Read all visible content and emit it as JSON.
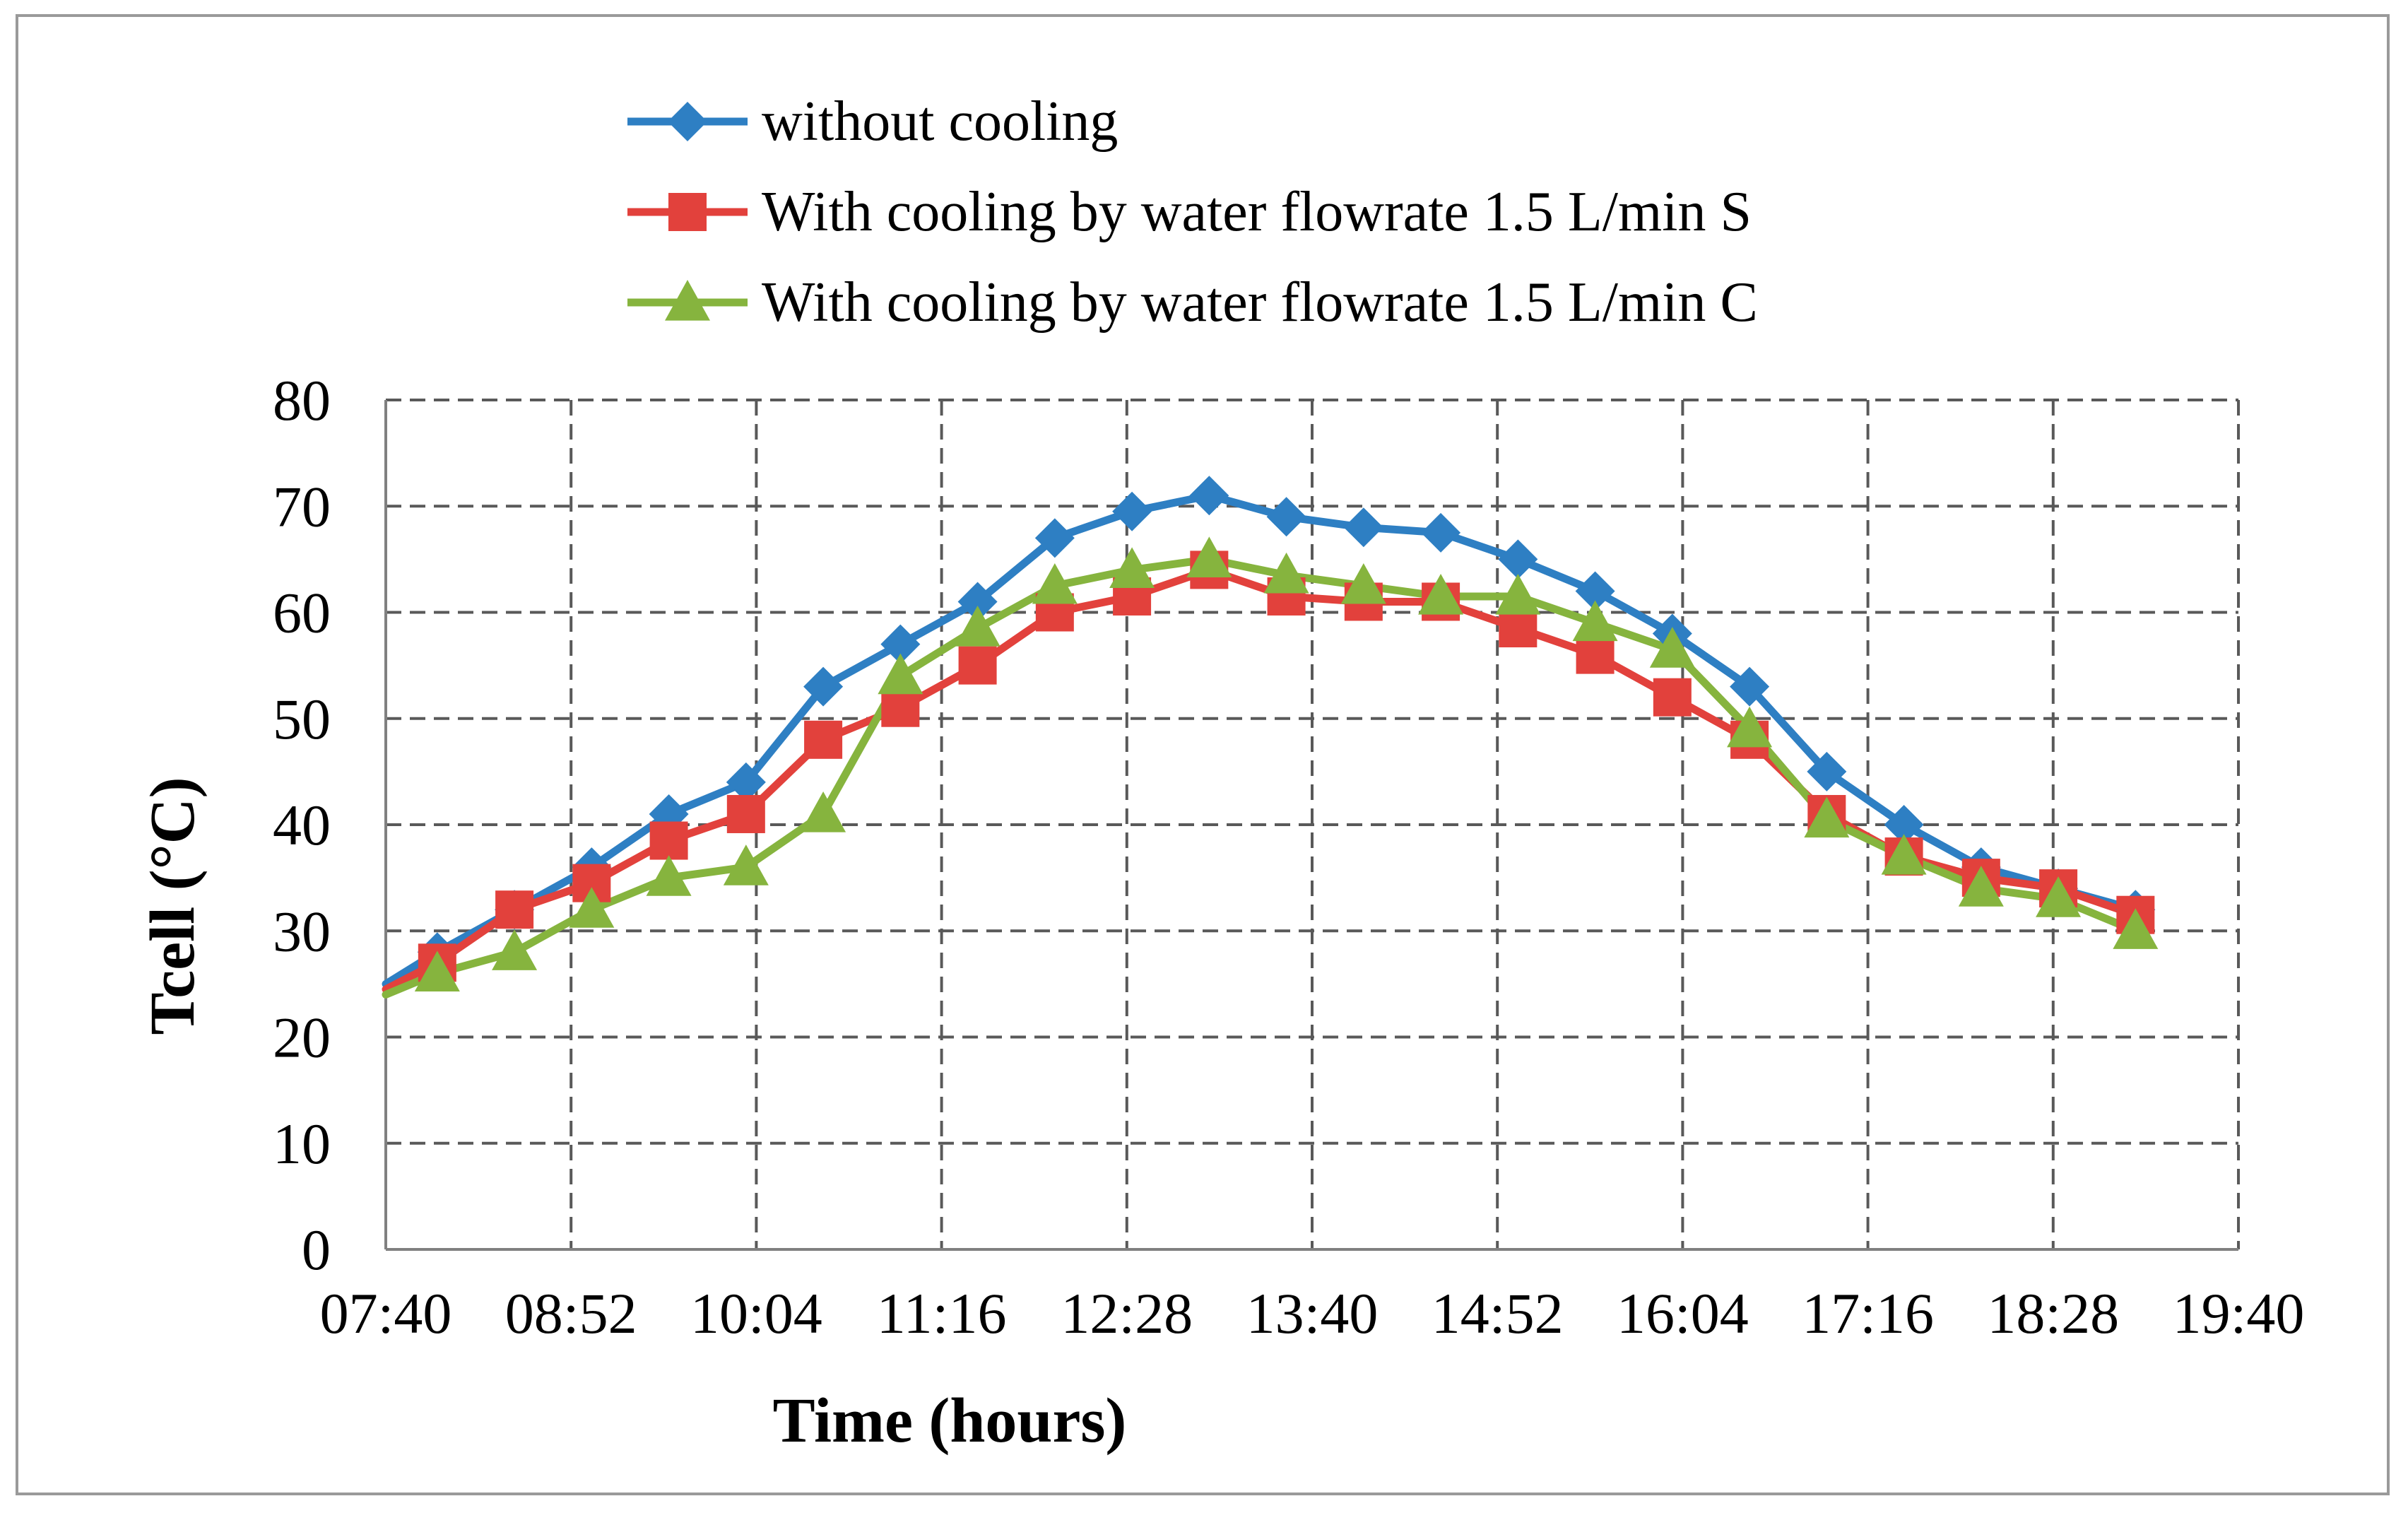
{
  "chart_data": {
    "type": "line",
    "title": "",
    "xlabel": "Time (hours)",
    "ylabel": "Tcell (°C)",
    "ylim": [
      0,
      80
    ],
    "xlim_minutes": [
      460,
      1180
    ],
    "x_ticks_minutes": [
      460,
      532,
      604,
      676,
      748,
      820,
      892,
      964,
      1036,
      1108,
      1180
    ],
    "x_tick_labels": [
      "07:40",
      "08:52",
      "10:04",
      "11:16",
      "12:28",
      "13:40",
      "14:52",
      "16:04",
      "17:16",
      "18:28",
      "19:40"
    ],
    "y_ticks": [
      0,
      10,
      20,
      30,
      40,
      50,
      60,
      70,
      80
    ],
    "y_tick_labels": [
      "0",
      "10",
      "20",
      "30",
      "40",
      "50",
      "60",
      "70",
      "80"
    ],
    "grid": true,
    "legend_position": "top-center",
    "series": [
      {
        "name": "without cooling",
        "color": "#2e7fc3",
        "marker": "diamond",
        "x_minutes": [
          460,
          480,
          510,
          540,
          570,
          600,
          630,
          660,
          690,
          720,
          750,
          780,
          810,
          840,
          870,
          900,
          930,
          960,
          990,
          1020,
          1050,
          1080,
          1110,
          1140
        ],
        "values": [
          25,
          28,
          32,
          36,
          41,
          44,
          53,
          57,
          61,
          67,
          69.5,
          71,
          69,
          68,
          67.5,
          65,
          62,
          58,
          53,
          45,
          40,
          36,
          34,
          32
        ]
      },
      {
        "name": "With cooling by water flowrate 1.5 L/min S",
        "color": "#e2413c",
        "marker": "square",
        "x_minutes": [
          460,
          480,
          510,
          540,
          570,
          600,
          630,
          660,
          690,
          720,
          750,
          780,
          810,
          840,
          870,
          900,
          930,
          960,
          990,
          1020,
          1050,
          1080,
          1110,
          1140
        ],
        "values": [
          24.5,
          27,
          32,
          34.5,
          38.5,
          41,
          48,
          51,
          55,
          60,
          61.5,
          64,
          61.5,
          61,
          61,
          58.5,
          56,
          52,
          48,
          41,
          37,
          35,
          34,
          31.5
        ]
      },
      {
        "name": "With cooling by water flowrate 1.5 L/min C",
        "color": "#86b43e",
        "marker": "triangle",
        "x_minutes": [
          460,
          480,
          510,
          540,
          570,
          600,
          630,
          660,
          690,
          720,
          750,
          780,
          810,
          840,
          870,
          900,
          930,
          960,
          990,
          1020,
          1050,
          1080,
          1110,
          1140
        ],
        "values": [
          24,
          26,
          28,
          32,
          35,
          36,
          41,
          54,
          58.5,
          62.5,
          64,
          65,
          63.5,
          62.5,
          61.5,
          61.5,
          59,
          56.5,
          49,
          40.5,
          37,
          34,
          33,
          30
        ]
      }
    ]
  }
}
